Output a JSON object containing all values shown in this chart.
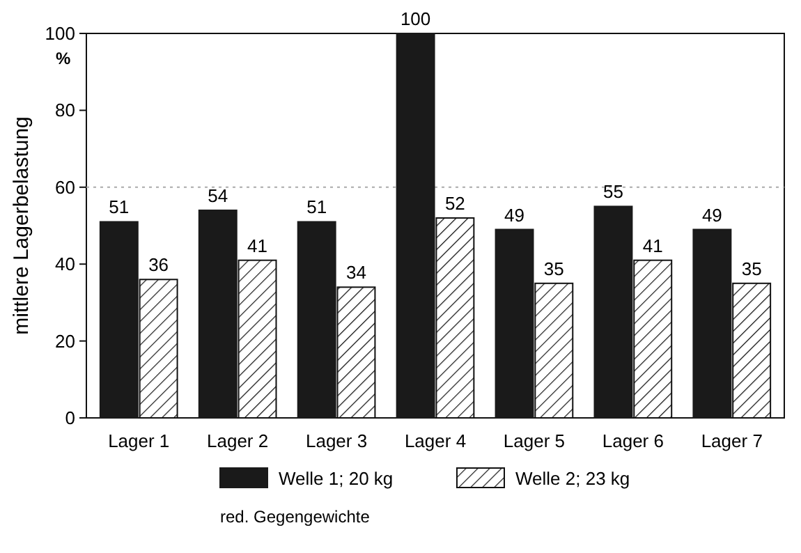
{
  "chart_data": {
    "type": "bar",
    "ylabel": "mittlere Lagerbelastung",
    "categories": [
      "Lager 1",
      "Lager 2",
      "Lager 3",
      "Lager 4",
      "Lager 5",
      "Lager 6",
      "Lager 7"
    ],
    "series": [
      {
        "name": "Welle 1; 20 kg",
        "color": "#1a1a1a",
        "values": [
          51,
          54,
          51,
          100,
          49,
          55,
          49
        ]
      },
      {
        "name": "Welle 2; 23 kg",
        "color": "#111111",
        "values": [
          36,
          41,
          34,
          52,
          35,
          41,
          35
        ]
      }
    ],
    "ylim": [
      0,
      100
    ],
    "yticks": [
      0,
      20,
      40,
      60,
      80,
      100
    ],
    "data_labels": true,
    "legend": "bottom",
    "grid": false,
    "ref_lines": [
      {
        "axis": "y",
        "value": 60,
        "line_style": "dotted",
        "color": "#aaaaaa"
      }
    ],
    "annotations": [
      "%",
      "red. Gegengewichte"
    ]
  }
}
